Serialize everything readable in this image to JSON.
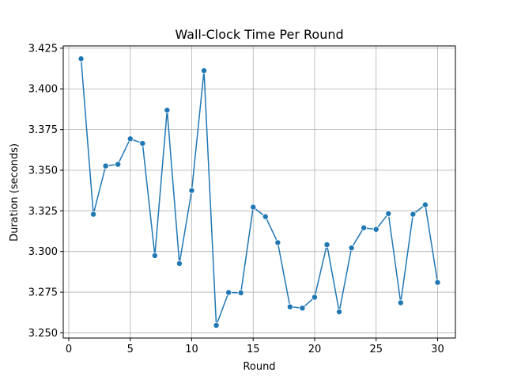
{
  "chart_data": {
    "type": "line",
    "title": "Wall-Clock Time Per Round",
    "xlabel": "Round",
    "ylabel": "Duration (seconds)",
    "xlim": [
      -0.45,
      31.45
    ],
    "ylim": [
      3.2468,
      3.4264
    ],
    "xticks": [
      0,
      5,
      10,
      15,
      20,
      25,
      30
    ],
    "xtick_labels": [
      "0",
      "5",
      "10",
      "15",
      "20",
      "25",
      "30"
    ],
    "yticks": [
      3.25,
      3.275,
      3.3,
      3.325,
      3.35,
      3.375,
      3.4,
      3.425
    ],
    "ytick_labels": [
      "3.250",
      "3.275",
      "3.300",
      "3.325",
      "3.350",
      "3.375",
      "3.400",
      "3.425"
    ],
    "grid": true,
    "series": [
      {
        "color": "#1f77b4",
        "marker": "circle",
        "x": [
          1,
          2,
          3,
          4,
          5,
          6,
          7,
          8,
          9,
          10,
          11,
          12,
          13,
          14,
          15,
          16,
          17,
          18,
          19,
          20,
          21,
          22,
          23,
          24,
          25,
          26,
          27,
          28,
          29,
          30
        ],
        "y": [
          3.4185,
          3.3229,
          3.3526,
          3.3536,
          3.3693,
          3.3665,
          3.2975,
          3.3869,
          3.2926,
          3.3375,
          3.4112,
          3.2546,
          3.2748,
          3.2746,
          3.3273,
          3.3214,
          3.3055,
          3.266,
          3.2652,
          3.2719,
          3.3042,
          3.2629,
          3.3022,
          3.3146,
          3.3136,
          3.3233,
          3.2685,
          3.3229,
          3.3287,
          3.281
        ]
      }
    ]
  }
}
